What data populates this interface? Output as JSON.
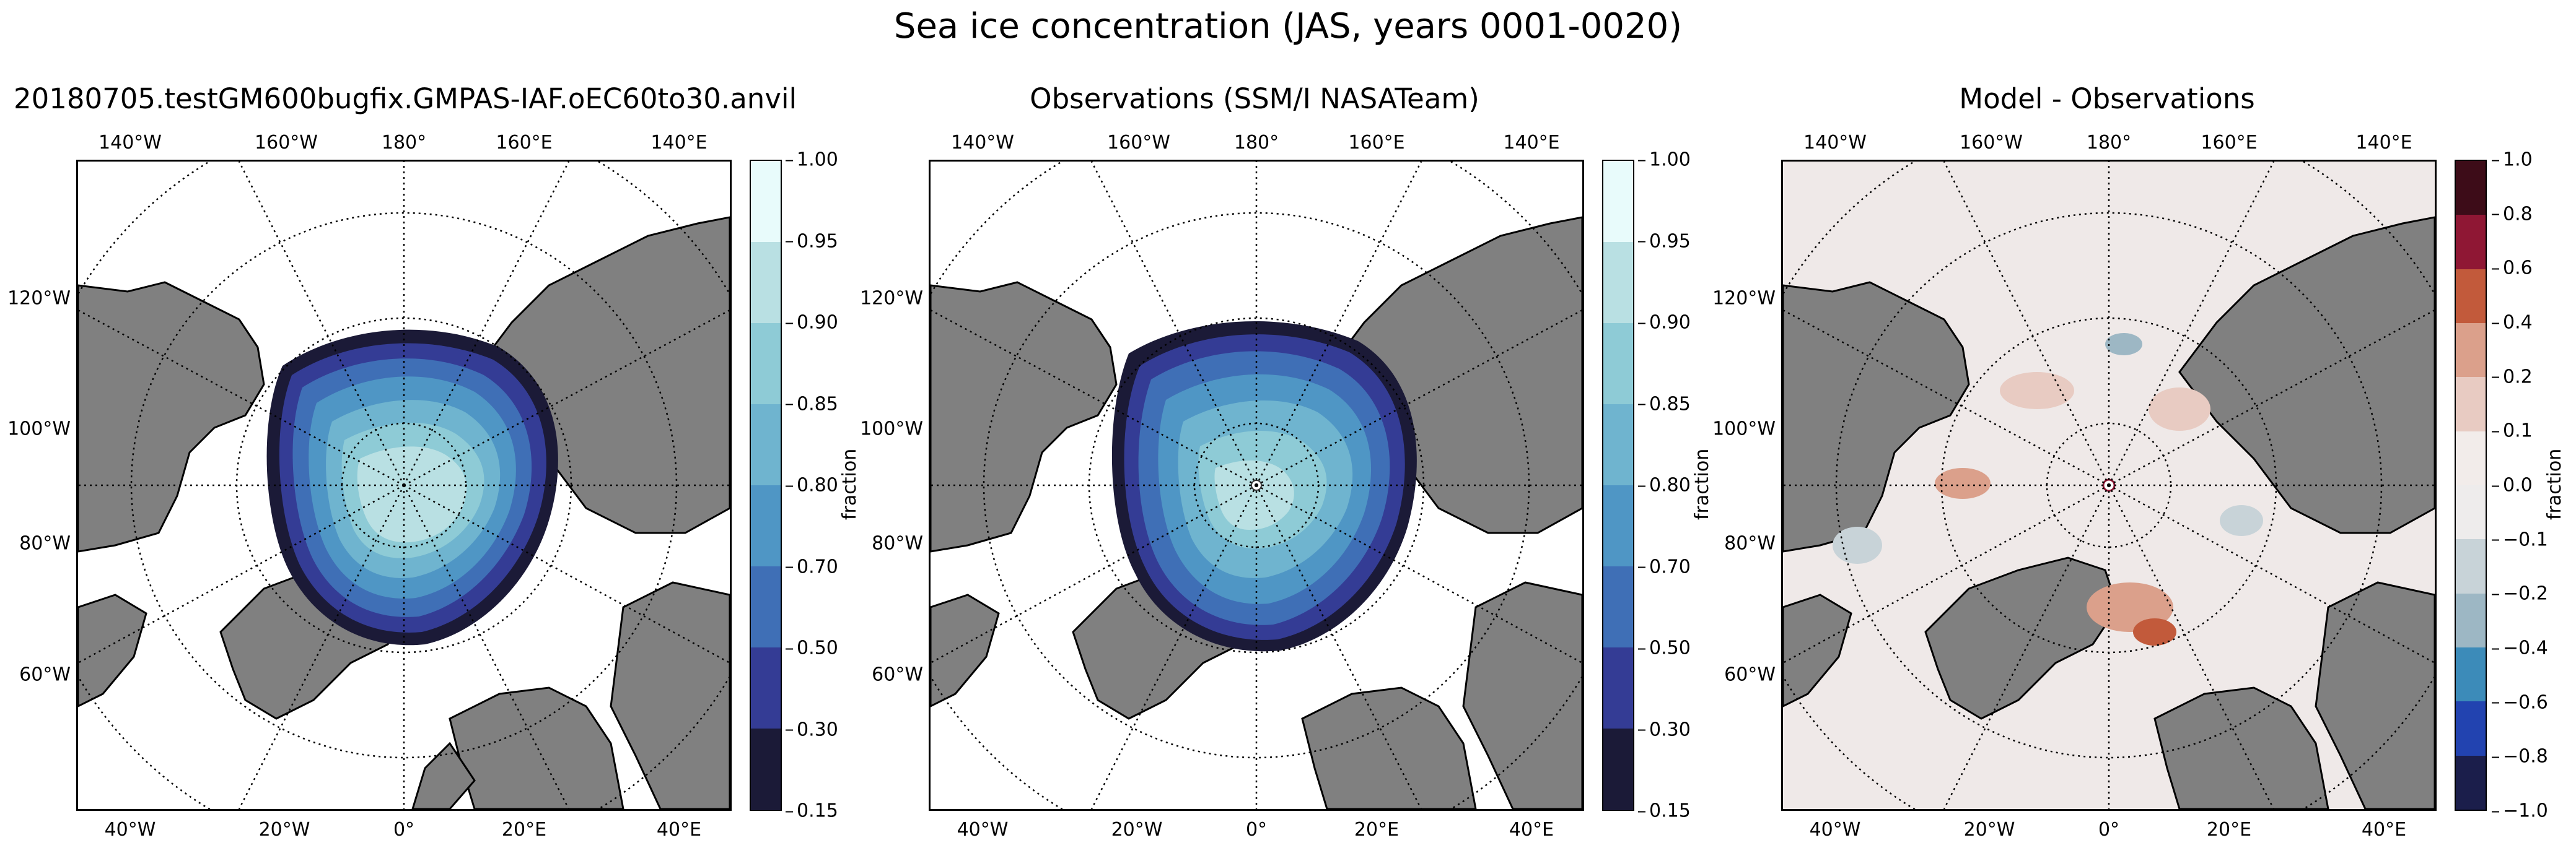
{
  "figure": {
    "suptitle": "Sea ice concentration (JAS, years 0001-0020)"
  },
  "lon_labels_top": [
    "140°W",
    "160°W",
    "180°",
    "160°E",
    "140°E"
  ],
  "lon_labels_bottom": [
    "40°W",
    "20°W",
    "0°",
    "20°E",
    "40°E"
  ],
  "lat_labels": [
    "120°W",
    "100°W",
    "80°W",
    "60°W"
  ],
  "panels": [
    {
      "title": "20180705.testGM600bugfix.GMPAS-IAF.oEC60to30.anvil",
      "colorbar": {
        "label": "fraction",
        "ticks": [
          "1.00",
          "0.95",
          "0.90",
          "0.85",
          "0.80",
          "0.70",
          "0.50",
          "0.30",
          "0.15"
        ],
        "colors": [
          "#e8fbfb",
          "#b9e0e3",
          "#8ecbd6",
          "#6fb4cf",
          "#4f96c5",
          "#3f6fb6",
          "#343c95",
          "#1b1a37"
        ]
      }
    },
    {
      "title": "Observations (SSM/I NASATeam)",
      "colorbar": {
        "label": "fraction",
        "ticks": [
          "1.00",
          "0.95",
          "0.90",
          "0.85",
          "0.80",
          "0.70",
          "0.50",
          "0.30",
          "0.15"
        ],
        "colors": [
          "#e8fbfb",
          "#b9e0e3",
          "#8ecbd6",
          "#6fb4cf",
          "#4f96c5",
          "#3f6fb6",
          "#343c95",
          "#1b1a37"
        ]
      }
    },
    {
      "title": "Model - Observations",
      "colorbar": {
        "label": "fraction",
        "ticks": [
          "1.0",
          "0.8",
          "0.6",
          "0.4",
          "0.2",
          "0.1",
          "0.0",
          "−0.1",
          "−0.2",
          "−0.4",
          "−0.6",
          "−0.8",
          "−1.0"
        ],
        "colors": [
          "#3d0c18",
          "#8f1734",
          "#c25a3b",
          "#dba08b",
          "#e8cbc2",
          "#f2ecea",
          "#eeecec",
          "#c8d3d8",
          "#9db7c4",
          "#3c8bb9",
          "#2243b0",
          "#1b1e4b"
        ]
      }
    }
  ],
  "colors": {
    "land": "#808080",
    "ocean": "#ffffff",
    "diff_background": "#efe9e8"
  }
}
